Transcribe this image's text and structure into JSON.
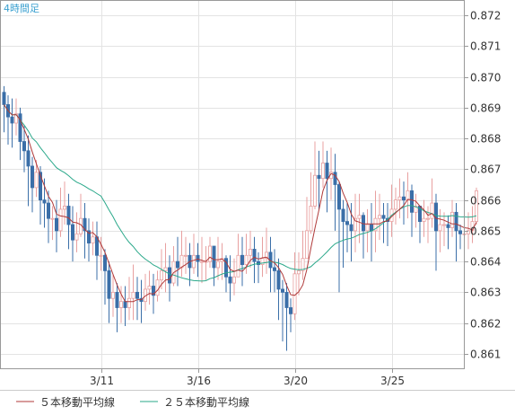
{
  "chart_data": {
    "type": "candlestick",
    "title": "4時間足",
    "xlabel": "",
    "ylabel": "",
    "ylim": [
      0.8605,
      0.8725
    ],
    "yticks": [
      0.861,
      0.862,
      0.863,
      0.864,
      0.865,
      0.866,
      0.867,
      0.868,
      0.869,
      0.87,
      0.871,
      0.872
    ],
    "ytick_labels": [
      "0.861",
      "0.862",
      "0.863",
      "0.864",
      "0.865",
      "0.866",
      "0.867",
      "0.868",
      "0.869",
      "0.870",
      "0.871",
      "0.872"
    ],
    "xticks": [
      {
        "label": "3/11",
        "index": 24
      },
      {
        "label": "3/16",
        "index": 48
      },
      {
        "label": "3/20",
        "index": 72
      },
      {
        "label": "3/25",
        "index": 96
      }
    ],
    "grid": true,
    "legend_position": "bottom-left",
    "series": [
      {
        "name": "５本移動平均線",
        "color": "#b03a3a"
      },
      {
        "name": "２５本移動平均線",
        "color": "#2aa88a"
      }
    ],
    "candles": {
      "up_color": "#e8a0a0",
      "down_color": "#3b6fa8",
      "close": [
        0.8691,
        0.8687,
        0.8685,
        0.8688,
        0.8679,
        0.8676,
        0.8671,
        0.8664,
        0.8669,
        0.866,
        0.8659,
        0.8654,
        0.8654,
        0.865,
        0.8657,
        0.8658,
        0.8652,
        0.8647,
        0.8649,
        0.8654,
        0.865,
        0.8646,
        0.8648,
        0.8642,
        0.8642,
        0.8637,
        0.8628,
        0.863,
        0.8625,
        0.8627,
        0.8625,
        0.8628,
        0.863,
        0.8628,
        0.8627,
        0.8631,
        0.8632,
        0.8629,
        0.8634,
        0.8637,
        0.8638,
        0.8633,
        0.864,
        0.8638,
        0.8642,
        0.8642,
        0.8638,
        0.8642,
        0.864,
        0.864,
        0.864,
        0.8645,
        0.8638,
        0.864,
        0.8641,
        0.8635,
        0.8633,
        0.8635,
        0.8642,
        0.8639,
        0.8642,
        0.8644,
        0.864,
        0.8639,
        0.8641,
        0.8643,
        0.8638,
        0.8637,
        0.8631,
        0.863,
        0.8625,
        0.8623,
        0.8636,
        0.8637,
        0.8641,
        0.865,
        0.8658,
        0.8668,
        0.8667,
        0.8672,
        0.8667,
        0.8669,
        0.8665,
        0.8657,
        0.8653,
        0.8652,
        0.865,
        0.8654,
        0.8655,
        0.865,
        0.8652,
        0.865,
        0.8654,
        0.8655,
        0.8654,
        0.8653,
        0.8657,
        0.866,
        0.8661,
        0.866,
        0.8663,
        0.8656,
        0.8658,
        0.8653,
        0.8654,
        0.8654,
        0.8659,
        0.865,
        0.8652,
        0.8652,
        0.8651,
        0.8656,
        0.865,
        0.8649,
        0.8649,
        0.865,
        0.8653,
        0.8663
      ],
      "high": [
        0.8697,
        0.8694,
        0.8693,
        0.8693,
        0.869,
        0.8684,
        0.8681,
        0.8674,
        0.8673,
        0.8671,
        0.8667,
        0.8663,
        0.8658,
        0.866,
        0.8664,
        0.8666,
        0.8662,
        0.8658,
        0.8656,
        0.8662,
        0.8659,
        0.8654,
        0.8653,
        0.8653,
        0.8648,
        0.8644,
        0.864,
        0.8636,
        0.8633,
        0.8632,
        0.8632,
        0.8635,
        0.8639,
        0.8635,
        0.8634,
        0.8636,
        0.8637,
        0.8636,
        0.8637,
        0.8644,
        0.8646,
        0.8642,
        0.8645,
        0.8648,
        0.865,
        0.8648,
        0.8646,
        0.8649,
        0.8646,
        0.8648,
        0.8645,
        0.8648,
        0.8645,
        0.8648,
        0.8646,
        0.8642,
        0.8642,
        0.8641,
        0.8649,
        0.8648,
        0.8649,
        0.865,
        0.8648,
        0.8643,
        0.8648,
        0.8651,
        0.8648,
        0.8644,
        0.8641,
        0.8634,
        0.8633,
        0.8628,
        0.8643,
        0.8643,
        0.865,
        0.8661,
        0.8669,
        0.8679,
        0.8676,
        0.8679,
        0.8676,
        0.8677,
        0.8675,
        0.8666,
        0.866,
        0.8659,
        0.8659,
        0.8662,
        0.8662,
        0.8656,
        0.8657,
        0.8659,
        0.8663,
        0.8662,
        0.8659,
        0.8659,
        0.8665,
        0.8664,
        0.8667,
        0.8666,
        0.8669,
        0.8665,
        0.8662,
        0.8658,
        0.866,
        0.8658,
        0.8667,
        0.8662,
        0.8657,
        0.8656,
        0.8655,
        0.866,
        0.8659,
        0.8652,
        0.8654,
        0.8656,
        0.8658,
        0.8664
      ],
      "low": [
        0.8682,
        0.8678,
        0.8677,
        0.8681,
        0.8673,
        0.8669,
        0.8658,
        0.8656,
        0.8661,
        0.8652,
        0.8651,
        0.8646,
        0.8647,
        0.8643,
        0.8648,
        0.8652,
        0.8644,
        0.864,
        0.8643,
        0.8648,
        0.8641,
        0.864,
        0.8642,
        0.8634,
        0.8637,
        0.8626,
        0.862,
        0.8622,
        0.8617,
        0.862,
        0.8619,
        0.8621,
        0.8621,
        0.8621,
        0.862,
        0.8624,
        0.8626,
        0.8623,
        0.8627,
        0.8631,
        0.863,
        0.8627,
        0.8632,
        0.8632,
        0.8635,
        0.8636,
        0.8632,
        0.8636,
        0.8635,
        0.8633,
        0.8634,
        0.8638,
        0.8632,
        0.8634,
        0.8634,
        0.863,
        0.8627,
        0.8629,
        0.8635,
        0.8632,
        0.8636,
        0.8638,
        0.8633,
        0.8633,
        0.8635,
        0.8636,
        0.863,
        0.863,
        0.8621,
        0.8614,
        0.8611,
        0.8617,
        0.8621,
        0.8629,
        0.8634,
        0.8642,
        0.8649,
        0.8657,
        0.8657,
        0.8664,
        0.8656,
        0.866,
        0.865,
        0.863,
        0.8638,
        0.8643,
        0.864,
        0.8643,
        0.8646,
        0.8641,
        0.8643,
        0.864,
        0.8643,
        0.8647,
        0.8646,
        0.8645,
        0.8648,
        0.8652,
        0.8654,
        0.8652,
        0.8654,
        0.8648,
        0.8651,
        0.8646,
        0.8648,
        0.8646,
        0.8651,
        0.8637,
        0.8643,
        0.8645,
        0.8644,
        0.8648,
        0.864,
        0.8644,
        0.8643,
        0.8644,
        0.8646,
        0.8652
      ]
    }
  }
}
